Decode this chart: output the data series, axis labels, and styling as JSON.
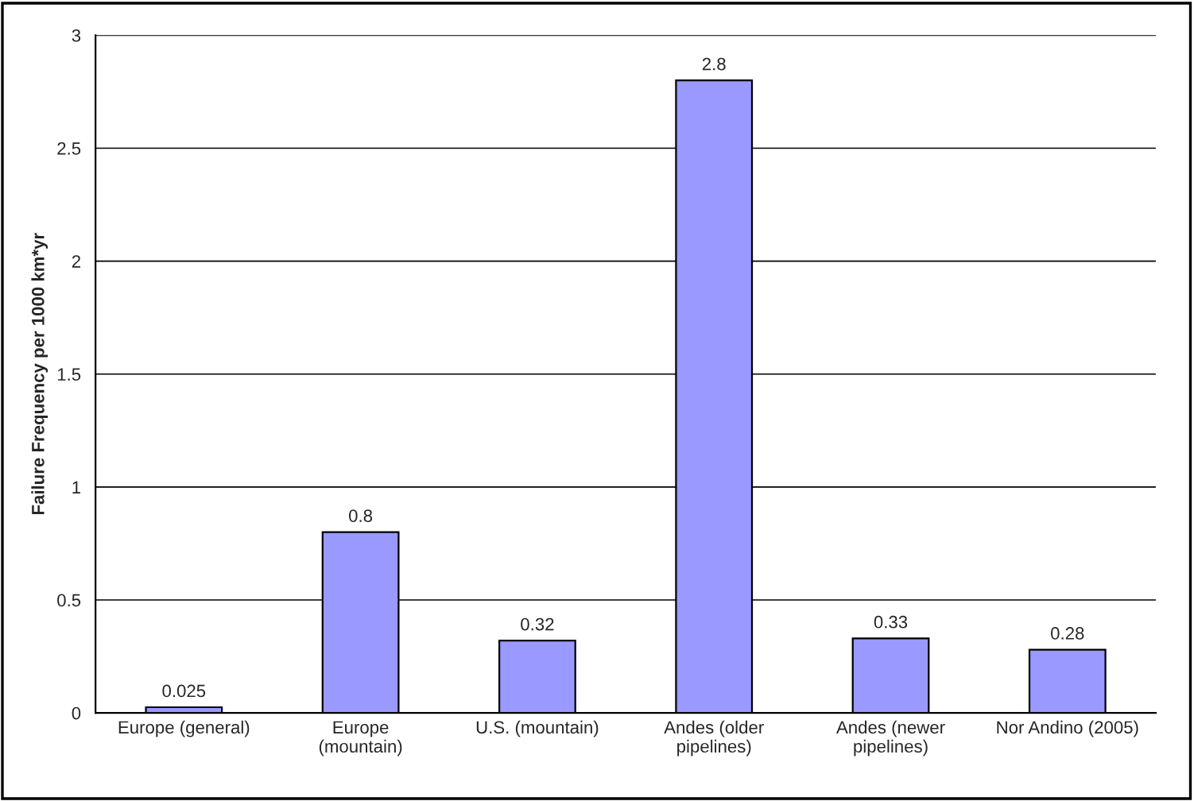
{
  "chart_data": {
    "type": "bar",
    "ylabel": "Failure Frequency per 1000 km*yr",
    "categories": [
      "Europe (general)",
      "Europe\n(mountain)",
      "U.S. (mountain)",
      "Andes (older\npipelines)",
      "Andes (newer\npipelines)",
      "Nor Andino (2005)"
    ],
    "values": [
      0.025,
      0.8,
      0.32,
      2.8,
      0.33,
      0.28
    ],
    "color": "#9999ff",
    "data_labels": true,
    "ylim": [
      0,
      3
    ],
    "yticks": [
      0,
      0.5,
      1,
      1.5,
      2,
      2.5,
      3
    ],
    "grid": "y"
  }
}
